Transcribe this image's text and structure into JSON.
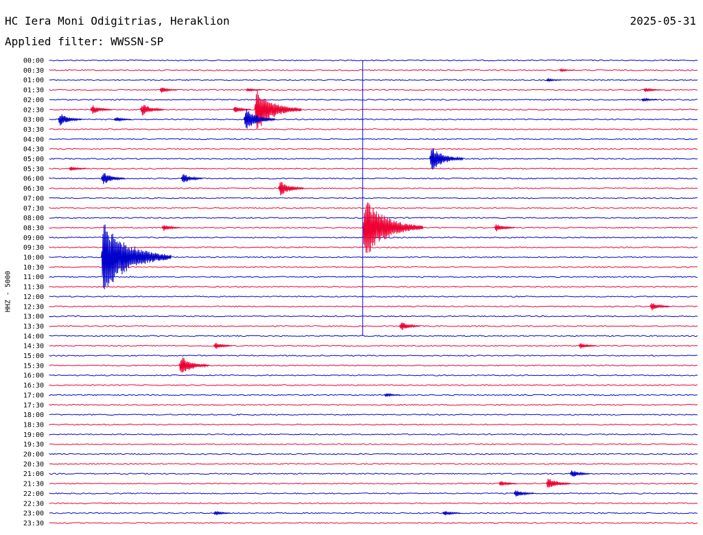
{
  "header": {
    "station": "HC Iera Moni Odigitrias, Heraklion",
    "date": "2025-05-31",
    "filter": "Applied filter: WWSSN-SP"
  },
  "colors": {
    "even_row": "#0000cc",
    "odd_row": "#ee0033",
    "marker": "#0000cc"
  },
  "chart_data": {
    "type": "line",
    "title": "HC Iera Moni Odigitrias, Heraklion",
    "subtitle": "Applied filter: WWSSN-SP",
    "ylabel": "HHZ - 5000",
    "row_interval_minutes": 30,
    "row_labels": [
      "00:00",
      "00:30",
      "01:00",
      "01:30",
      "02:00",
      "02:30",
      "03:00",
      "03:30",
      "04:00",
      "04:30",
      "05:00",
      "05:30",
      "06:00",
      "06:30",
      "07:00",
      "07:30",
      "08:00",
      "08:30",
      "09:00",
      "09:30",
      "10:00",
      "10:30",
      "11:00",
      "11:30",
      "12:00",
      "12:30",
      "13:00",
      "13:30",
      "14:00",
      "14:30",
      "15:00",
      "15:30",
      "16:00",
      "16:30",
      "17:00",
      "17:30",
      "18:00",
      "18:30",
      "19:00",
      "19:30",
      "20:00",
      "20:30",
      "21:00",
      "21:30",
      "22:00",
      "22:30",
      "23:00",
      "23:30"
    ],
    "marker_minute": 14.5,
    "events": [
      {
        "row": 1,
        "minute": 23.6,
        "amp": 3
      },
      {
        "row": 3,
        "minute": 9.1,
        "amp": 4
      },
      {
        "row": 3,
        "minute": 5.1,
        "amp": 6
      },
      {
        "row": 3,
        "minute": 27.5,
        "amp": 5
      },
      {
        "row": 2,
        "minute": 23.0,
        "amp": 3
      },
      {
        "row": 4,
        "minute": 27.4,
        "amp": 4
      },
      {
        "row": 5,
        "minute": 9.5,
        "amp": 36
      },
      {
        "row": 5,
        "minute": 8.5,
        "amp": 6
      },
      {
        "row": 5,
        "minute": 1.9,
        "amp": 9
      },
      {
        "row": 5,
        "minute": 8.5,
        "amp": 6
      },
      {
        "row": 6,
        "minute": 0.4,
        "amp": 12
      },
      {
        "row": 6,
        "minute": 3.0,
        "amp": 5
      },
      {
        "row": 5,
        "minute": 4.2,
        "amp": 12
      },
      {
        "row": 6,
        "minute": 9.0,
        "amp": 20
      },
      {
        "row": 10,
        "minute": 17.6,
        "amp": 22
      },
      {
        "row": 11,
        "minute": 0.9,
        "amp": 5
      },
      {
        "row": 12,
        "minute": 2.4,
        "amp": 12
      },
      {
        "row": 12,
        "minute": 6.1,
        "amp": 10
      },
      {
        "row": 13,
        "minute": 10.6,
        "amp": 14
      },
      {
        "row": 17,
        "minute": 5.2,
        "amp": 7
      },
      {
        "row": 17,
        "minute": 20.6,
        "amp": 8
      },
      {
        "row": 17,
        "minute": 14.5,
        "amp": 50
      },
      {
        "row": 20,
        "minute": 2.4,
        "amp": 60
      },
      {
        "row": 29,
        "minute": 7.6,
        "amp": 7
      },
      {
        "row": 27,
        "minute": 16.2,
        "amp": 9
      },
      {
        "row": 29,
        "minute": 24.5,
        "amp": 6
      },
      {
        "row": 31,
        "minute": 6.0,
        "amp": 18
      },
      {
        "row": 34,
        "minute": 15.5,
        "amp": 4
      },
      {
        "row": 25,
        "minute": 27.8,
        "amp": 8
      },
      {
        "row": 42,
        "minute": 24.1,
        "amp": 8
      },
      {
        "row": 43,
        "minute": 23.0,
        "amp": 12
      },
      {
        "row": 43,
        "minute": 20.8,
        "amp": 6
      },
      {
        "row": 44,
        "minute": 21.5,
        "amp": 8
      },
      {
        "row": 46,
        "minute": 7.6,
        "amp": 5
      },
      {
        "row": 46,
        "minute": 18.2,
        "amp": 6
      }
    ]
  }
}
